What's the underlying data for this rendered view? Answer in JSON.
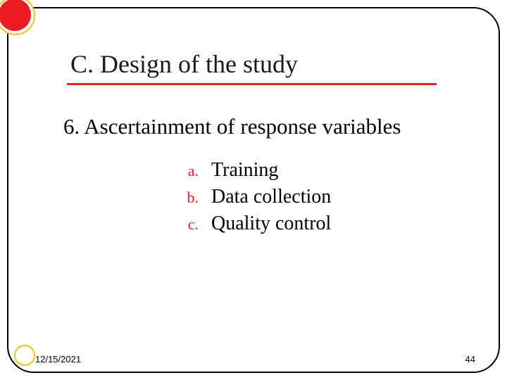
{
  "title": "C. Design of the study",
  "subtitle": "6. Ascertainment of response variables",
  "items": [
    {
      "marker": "a.",
      "text": "Training"
    },
    {
      "marker": "b.",
      "text": "Data collection"
    },
    {
      "marker": "c.",
      "text": "Quality control"
    }
  ],
  "footer": {
    "date": "12/15/2021",
    "page": "44"
  },
  "colors": {
    "accent_red": "#ed1c24",
    "accent_yellow": "#febe10",
    "text": "#000000",
    "background": "#ffffff"
  }
}
